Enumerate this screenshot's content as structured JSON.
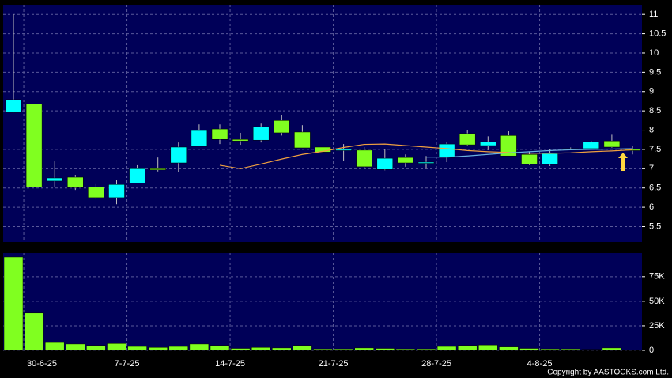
{
  "chart_data": [
    {
      "type": "candlestick",
      "open": [
        8.46,
        8.68,
        6.68,
        6.78,
        6.53,
        6.25,
        6.63,
        7.0,
        7.15,
        7.58,
        8.03,
        7.76,
        7.74,
        8.25,
        7.95,
        7.56,
        7.48,
        7.48,
        6.98,
        7.29,
        7.15,
        7.29,
        7.91,
        7.6,
        7.86,
        7.37,
        7.11,
        7.5,
        7.52,
        7.72,
        7.5
      ],
      "high": [
        11,
        8.68,
        7.19,
        6.84,
        6.6,
        6.72,
        7.09,
        7.29,
        7.68,
        8.15,
        8.15,
        7.93,
        8.17,
        8.38,
        8.13,
        7.64,
        7.64,
        7.56,
        7.5,
        7.37,
        7.33,
        7.68,
        7.99,
        7.84,
        7.97,
        7.45,
        7.5,
        7.55,
        7.72,
        7.88,
        7.58
      ],
      "low": [
        8.46,
        6.53,
        6.53,
        6.45,
        6.22,
        6.08,
        6.63,
        6.93,
        6.92,
        7.58,
        7.64,
        7.62,
        7.68,
        7.86,
        7.54,
        7.35,
        7.2,
        7.0,
        6.96,
        7.05,
        7.0,
        7.17,
        7.6,
        7.48,
        7.33,
        7.09,
        7.07,
        7.48,
        7.5,
        7.54,
        7.37
      ],
      "close": [
        8.79,
        6.53,
        6.76,
        6.51,
        6.25,
        6.59,
        7.0,
        6.98,
        7.56,
        7.99,
        7.76,
        7.72,
        8.09,
        7.93,
        7.54,
        7.43,
        7.5,
        7.05,
        7.27,
        7.15,
        7.17,
        7.64,
        7.62,
        7.7,
        7.33,
        7.11,
        7.39,
        7.52,
        7.7,
        7.56,
        7.48
      ],
      "up_color": "#00ffff",
      "down_color": "#80ff20",
      "series": [
        {
          "color": "#f0a040",
          "values": [
            null,
            null,
            null,
            null,
            null,
            null,
            null,
            null,
            null,
            null,
            7.09,
            7.0,
            7.12,
            7.25,
            7.37,
            7.45,
            7.55,
            7.63,
            7.64,
            7.6,
            7.56,
            7.52,
            7.47,
            7.44,
            7.42,
            7.4,
            7.4,
            7.41,
            7.44,
            7.46,
            7.49
          ]
        },
        {
          "color": "#6ab0e0",
          "values": [
            null,
            null,
            null,
            null,
            null,
            null,
            null,
            null,
            null,
            null,
            null,
            null,
            null,
            null,
            null,
            null,
            null,
            null,
            null,
            null,
            7.3,
            7.3,
            7.33,
            7.37,
            7.41,
            7.44,
            7.47,
            7.49,
            7.5,
            7.51,
            7.52
          ]
        }
      ],
      "ylim": [
        5.1,
        11.25
      ],
      "yticks": [
        5.5,
        6,
        6.5,
        7,
        7.5,
        8,
        8.5,
        9,
        9.5,
        10,
        10.5,
        11
      ],
      "grid": true
    },
    {
      "type": "bar",
      "categories": [
        null,
        "30-6-25",
        null,
        null,
        null,
        null,
        "7-7-25",
        null,
        null,
        null,
        null,
        "14-7-25",
        null,
        null,
        null,
        null,
        "21-7-25",
        null,
        null,
        null,
        null,
        "28-7-25",
        null,
        null,
        null,
        null,
        "4-8-25",
        null,
        null,
        null,
        null
      ],
      "values": [
        95000,
        38000,
        8000,
        6500,
        5000,
        7000,
        4000,
        3000,
        4000,
        6500,
        5000,
        2000,
        3000,
        2500,
        5000,
        1500,
        1500,
        2500,
        2000,
        1500,
        1500,
        4000,
        5000,
        5500,
        3500,
        2000,
        1500,
        1500,
        1000,
        2500,
        300
      ],
      "color": "#80ff20",
      "ylim": [
        0,
        99000
      ],
      "yticks": [
        0,
        {
          "value": 25000,
          "label": "25K"
        },
        {
          "value": 50000,
          "label": "50K"
        },
        {
          "value": 75000,
          "label": "75K"
        }
      ],
      "grid": true
    }
  ],
  "footer": "Copyright by AASTOCKS.com Ltd."
}
